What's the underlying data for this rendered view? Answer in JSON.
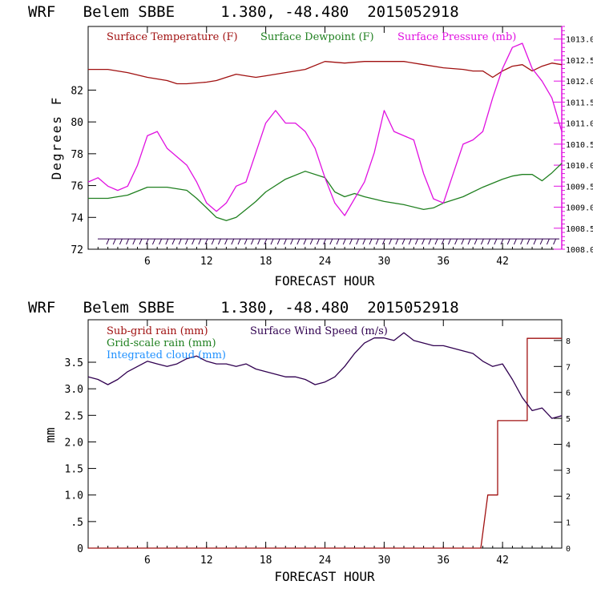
{
  "chart_data": [
    {
      "type": "line",
      "title": "WRF   Belem SBBE     1.380, -48.480  2015052918",
      "xlabel": "FORECAST HOUR",
      "ylabel": "Degrees F",
      "xlim": [
        0,
        48
      ],
      "ylim": [
        72,
        86
      ],
      "yticks": [
        72,
        74,
        76,
        78,
        80,
        82
      ],
      "xticks": [
        6,
        12,
        18,
        24,
        30,
        36,
        42
      ],
      "y2lim": [
        1008.0,
        1013.3
      ],
      "y2ticks": [
        "1008.0",
        "1008.5",
        "1009.0",
        "1009.5",
        "1010.0",
        "1010.5",
        "1011.0",
        "1011.5",
        "1012.0",
        "1012.5",
        "1013.0"
      ],
      "series": [
        {
          "name": "Surface Temperature (F)",
          "color": "#a01010",
          "axis": "left",
          "x": [
            0,
            2,
            4,
            6,
            8,
            9,
            10,
            12,
            13,
            14,
            15,
            16,
            17,
            18,
            20,
            22,
            24,
            26,
            28,
            30,
            32,
            34,
            36,
            38,
            39,
            40,
            41,
            42,
            43,
            44,
            45,
            46,
            47,
            48
          ],
          "y": [
            83.3,
            83.3,
            83.1,
            82.8,
            82.6,
            82.4,
            82.4,
            82.5,
            82.6,
            82.8,
            83.0,
            82.9,
            82.8,
            82.9,
            83.1,
            83.3,
            83.8,
            83.7,
            83.8,
            83.8,
            83.8,
            83.6,
            83.4,
            83.3,
            83.2,
            83.2,
            82.8,
            83.2,
            83.5,
            83.6,
            83.2,
            83.5,
            83.7,
            83.6
          ]
        },
        {
          "name": "Surface Dewpoint (F)",
          "color": "#208020",
          "axis": "left",
          "x": [
            0,
            2,
            4,
            6,
            7,
            8,
            10,
            11,
            12,
            13,
            14,
            15,
            16,
            17,
            18,
            20,
            22,
            24,
            25,
            26,
            27,
            28,
            30,
            32,
            34,
            35,
            36,
            38,
            40,
            42,
            43,
            44,
            45,
            46,
            47,
            48
          ],
          "y": [
            75.2,
            75.2,
            75.4,
            75.9,
            75.9,
            75.9,
            75.7,
            75.2,
            74.6,
            74.0,
            73.8,
            74.0,
            74.5,
            75.0,
            75.6,
            76.4,
            76.9,
            76.5,
            75.6,
            75.3,
            75.5,
            75.3,
            75.0,
            74.8,
            74.5,
            74.6,
            74.9,
            75.3,
            75.9,
            76.4,
            76.6,
            76.7,
            76.7,
            76.3,
            76.8,
            77.4
          ]
        },
        {
          "name": "Surface Pressure (mb)",
          "color": "#e010e0",
          "axis": "right",
          "x": [
            0,
            1,
            2,
            3,
            4,
            5,
            6,
            7,
            8,
            9,
            10,
            11,
            12,
            13,
            14,
            15,
            16,
            17,
            18,
            19,
            20,
            21,
            22,
            23,
            24,
            25,
            26,
            27,
            28,
            29,
            30,
            31,
            32,
            33,
            34,
            35,
            36,
            37,
            38,
            39,
            40,
            41,
            42,
            43,
            44,
            45,
            46,
            47,
            48
          ],
          "y": [
            1009.6,
            1009.7,
            1009.5,
            1009.4,
            1009.5,
            1010.0,
            1010.7,
            1010.8,
            1010.4,
            1010.2,
            1010.0,
            1009.6,
            1009.1,
            1008.9,
            1009.1,
            1009.5,
            1009.6,
            1010.3,
            1011.0,
            1011.3,
            1011.0,
            1011.0,
            1010.8,
            1010.4,
            1009.7,
            1009.1,
            1008.8,
            1009.2,
            1009.6,
            1010.3,
            1011.3,
            1010.8,
            1010.7,
            1010.6,
            1009.8,
            1009.2,
            1009.1,
            1009.8,
            1010.5,
            1010.6,
            1010.8,
            1011.6,
            1012.3,
            1012.8,
            1012.9,
            1012.3,
            1012.0,
            1011.6,
            1010.8
          ]
        }
      ]
    },
    {
      "type": "line",
      "title": "WRF   Belem SBBE     1.380, -48.480  2015052918",
      "xlabel": "FORECAST HOUR",
      "ylabel": "mm",
      "xlim": [
        0,
        48
      ],
      "ylim": [
        0,
        4.3
      ],
      "ytick_labels": [
        "0",
        ".5",
        "1.0",
        "1.5",
        "2.0",
        "2.5",
        "3.0",
        "3.5"
      ],
      "ytick_values": [
        0,
        0.5,
        1.0,
        1.5,
        2.0,
        2.5,
        3.0,
        3.5
      ],
      "xticks": [
        6,
        12,
        18,
        24,
        30,
        36,
        42
      ],
      "y2lim": [
        0,
        8.8
      ],
      "y2ticks": [
        0,
        1,
        2,
        3,
        4,
        5,
        6,
        7,
        8
      ],
      "series": [
        {
          "name": "Sub-grid rain (mm)",
          "color": "#a01010",
          "axis": "left",
          "x": [
            0,
            39.8,
            40.5,
            40.5,
            41.5,
            41.5,
            44.5,
            44.5,
            48
          ],
          "y": [
            0,
            0,
            1.0,
            1.0,
            1.0,
            2.4,
            2.4,
            3.95,
            3.95
          ]
        },
        {
          "name": "Grid-scale rain (mm)",
          "color": "#208020",
          "axis": "left",
          "x": [],
          "y": []
        },
        {
          "name": "Integrated cloud (mm)",
          "color": "#1e90ff",
          "axis": "left",
          "x": [],
          "y": []
        },
        {
          "name": "Surface Wind Speed (m/s)",
          "color": "#300050",
          "axis": "right",
          "x": [
            0,
            1,
            2,
            3,
            4,
            5,
            6,
            7,
            8,
            9,
            10,
            11,
            12,
            13,
            14,
            15,
            16,
            17,
            18,
            19,
            20,
            21,
            22,
            23,
            24,
            25,
            26,
            27,
            28,
            29,
            30,
            31,
            32,
            33,
            34,
            35,
            36,
            37,
            38,
            39,
            40,
            41,
            42,
            43,
            44,
            45,
            46,
            47,
            48
          ],
          "y": [
            6.6,
            6.5,
            6.3,
            6.5,
            6.8,
            7.0,
            7.2,
            7.1,
            7.0,
            7.1,
            7.3,
            7.4,
            7.2,
            7.1,
            7.1,
            7.0,
            7.1,
            6.9,
            6.8,
            6.7,
            6.6,
            6.6,
            6.5,
            6.3,
            6.4,
            6.6,
            7.0,
            7.5,
            7.9,
            8.1,
            8.1,
            8.0,
            8.3,
            8.0,
            7.9,
            7.8,
            7.8,
            7.7,
            7.6,
            7.5,
            7.2,
            7.0,
            7.1,
            6.5,
            5.8,
            5.3,
            5.4,
            5.0,
            5.1
          ]
        }
      ]
    }
  ]
}
